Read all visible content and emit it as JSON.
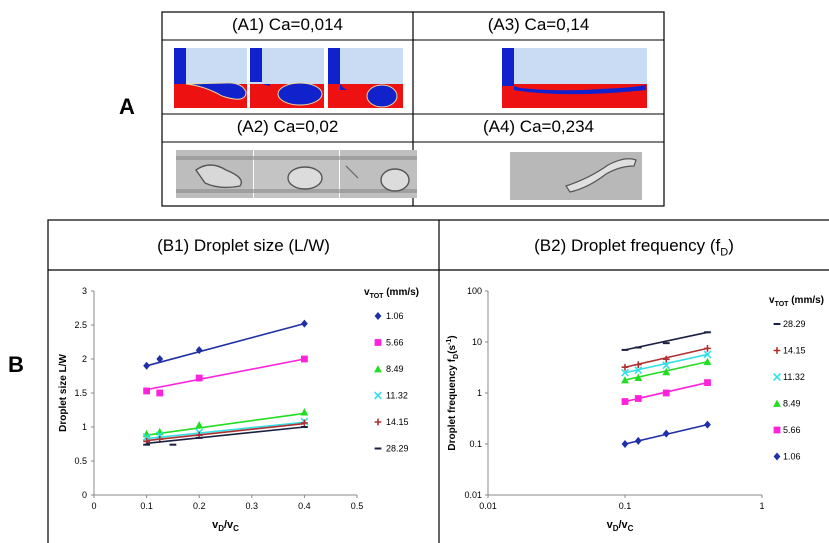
{
  "sections": {
    "a_label": "A",
    "b_label": "B"
  },
  "panel_a": {
    "cells": [
      {
        "title": "(A1) Ca=0,014"
      },
      {
        "title": "(A3) Ca=0,14"
      },
      {
        "title": "(A2) Ca=0,02"
      },
      {
        "title": "(A4) Ca=0,234"
      }
    ]
  },
  "panel_b": {
    "b1_title": "(B1) Droplet size (L/W)",
    "b2_title_main": "(B2) Droplet frequency (f",
    "b2_title_sub": "D",
    "b2_title_end": ")"
  },
  "colors": {
    "s1_06": "#1f2fa8",
    "s5_66": "#ff22dd",
    "s8_49": "#22dd22",
    "s11_32": "#33e0e6",
    "s14_15": "#b03030",
    "s28_29": "#1c2040",
    "sim_blue": "#c9dcf3",
    "sim_red": "#ee1111",
    "sim_drop": "#1122cc"
  },
  "chart_data": [
    {
      "type": "scatter",
      "title": "(B1) Droplet size (L/W)",
      "xlabel": "vD/vC",
      "ylabel": "Droplet size L/W",
      "xlim": [
        0,
        0.5
      ],
      "ylim": [
        0,
        3
      ],
      "xticks": [
        "0",
        "0.1",
        "0.2",
        "0.3",
        "0.4",
        "0.5"
      ],
      "yticks": [
        "0",
        "0.5",
        "1",
        "1.5",
        "2",
        "2.5",
        "3"
      ],
      "legend_title": "vTOT (mm/s)",
      "legend_position": "right",
      "series": [
        {
          "name": "1.06",
          "marker": "diamond",
          "x": [
            0.1,
            0.125,
            0.2,
            0.4
          ],
          "y": [
            1.9,
            2.0,
            2.13,
            2.52
          ],
          "fit": [
            [
              0.1,
              1.9
            ],
            [
              0.4,
              2.52
            ]
          ]
        },
        {
          "name": "5.66",
          "marker": "square",
          "x": [
            0.1,
            0.125,
            0.2,
            0.4
          ],
          "y": [
            1.53,
            1.5,
            1.72,
            2.0
          ],
          "fit": [
            [
              0.1,
              1.55
            ],
            [
              0.4,
              2.0
            ]
          ]
        },
        {
          "name": "8.49",
          "marker": "triangle",
          "x": [
            0.1,
            0.125,
            0.2,
            0.4
          ],
          "y": [
            0.9,
            0.93,
            1.03,
            1.22
          ],
          "fit": [
            [
              0.1,
              0.88
            ],
            [
              0.4,
              1.2
            ]
          ]
        },
        {
          "name": "11.32",
          "marker": "x",
          "x": [
            0.1,
            0.125,
            0.2,
            0.4
          ],
          "y": [
            0.85,
            0.88,
            0.92,
            1.08
          ],
          "fit": [
            [
              0.1,
              0.83
            ],
            [
              0.4,
              1.07
            ]
          ]
        },
        {
          "name": "14.15",
          "marker": "plus",
          "x": [
            0.1,
            0.125,
            0.2,
            0.4
          ],
          "y": [
            0.79,
            0.82,
            0.88,
            1.06
          ],
          "fit": [
            [
              0.1,
              0.8
            ],
            [
              0.4,
              1.05
            ]
          ]
        },
        {
          "name": "28.29",
          "marker": "dash",
          "x": [
            0.1,
            0.15,
            0.2,
            0.4
          ],
          "y": [
            0.74,
            0.74,
            0.84,
            1.0
          ],
          "fit": [
            [
              0.1,
              0.76
            ],
            [
              0.4,
              1.0
            ]
          ]
        }
      ]
    },
    {
      "type": "scatter",
      "title": "(B2) Droplet frequency (fD)",
      "xlabel": "vD/vC",
      "ylabel": "Droplet frequency fD(s-1)",
      "xscale": "log",
      "yscale": "log",
      "xlim": [
        0.01,
        1
      ],
      "ylim": [
        0.01,
        100
      ],
      "xticks": [
        "0.01",
        "0.1",
        "1"
      ],
      "yticks": [
        "0.01",
        "0.1",
        "1",
        "10",
        "100"
      ],
      "legend_title": "vTOT (mm/s)",
      "legend_position": "right",
      "series": [
        {
          "name": "28.29",
          "marker": "dash",
          "x": [
            0.1,
            0.125,
            0.2,
            0.4
          ],
          "y": [
            7.0,
            7.8,
            9.5,
            15.5
          ]
        },
        {
          "name": "14.15",
          "marker": "plus",
          "x": [
            0.1,
            0.125,
            0.2,
            0.4
          ],
          "y": [
            3.2,
            3.6,
            4.6,
            7.5
          ]
        },
        {
          "name": "11.32",
          "marker": "x",
          "x": [
            0.1,
            0.125,
            0.2,
            0.4
          ],
          "y": [
            2.5,
            2.8,
            3.5,
            5.7
          ]
        },
        {
          "name": "8.49",
          "marker": "triangle",
          "x": [
            0.1,
            0.125,
            0.2,
            0.4
          ],
          "y": [
            1.8,
            2.0,
            2.6,
            4.1
          ]
        },
        {
          "name": "5.66",
          "marker": "square",
          "x": [
            0.1,
            0.125,
            0.2,
            0.4
          ],
          "y": [
            0.68,
            0.78,
            1.0,
            1.6
          ]
        },
        {
          "name": "1.06",
          "marker": "diamond",
          "x": [
            0.1,
            0.125,
            0.2,
            0.4
          ],
          "y": [
            0.1,
            0.115,
            0.16,
            0.24
          ]
        }
      ]
    }
  ]
}
